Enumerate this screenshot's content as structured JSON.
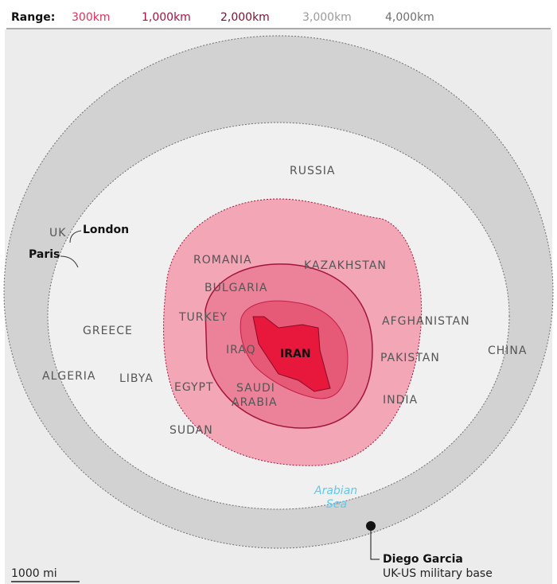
{
  "legend": {
    "title": "Range:",
    "ranges": [
      {
        "label": "300km",
        "color": "#e0325a"
      },
      {
        "label": "1,000km",
        "color": "#a3143c"
      },
      {
        "label": "2,000km",
        "color": "#7a1030"
      },
      {
        "label": "3,000km",
        "color": "#9a9a9a"
      },
      {
        "label": "4,000km",
        "color": "#6e6e6e"
      }
    ]
  },
  "labels": {
    "countries": [
      "RUSSIA",
      "UK",
      "ROMANIA",
      "KAZAKHSTAN",
      "BULGARIA",
      "TURKEY",
      "AFGHANISTAN",
      "GREECE",
      "IRAQ",
      "CHINA",
      "PAKISTAN",
      "ALGERIA",
      "LIBYA",
      "EGYPT",
      "SAUDI",
      "ARABIA",
      "INDIA",
      "SUDAN"
    ],
    "cities": [
      "London",
      "Paris"
    ],
    "iran": "IRAN",
    "sea": [
      "Arabian",
      "Sea"
    ]
  },
  "base": {
    "name": "Diego Garcia",
    "note": "UK-US military base"
  },
  "scale": "1000 mi"
}
